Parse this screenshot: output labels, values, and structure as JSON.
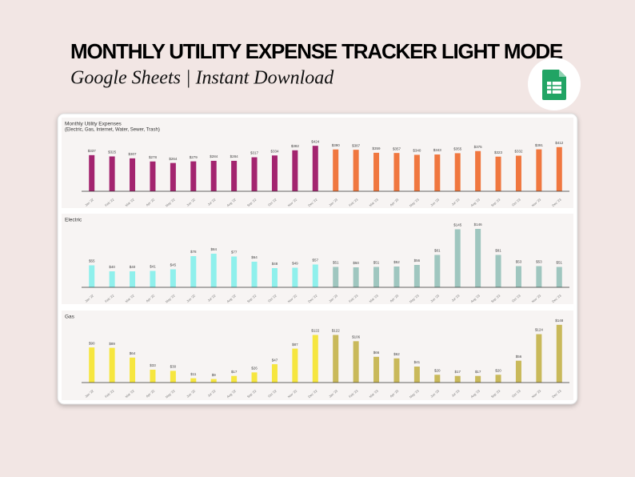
{
  "header": {
    "title": "MONTHLY UTILITY EXPENSE TRACKER LIGHT MODE",
    "subtitle": "Google Sheets | Instant Download"
  },
  "chart_data": [
    {
      "type": "bar",
      "title": "Monthly Utility Expenses",
      "subtitle": "(Electric, Gas, Internet, Water, Sewer, Trash)",
      "categories": [
        "Jan '22",
        "Feb '22",
        "Mar '22",
        "Apr '22",
        "May '22",
        "Jun '22",
        "Jul '22",
        "Aug '22",
        "Sep '22",
        "Oct '22",
        "Nov '22",
        "Dec '22",
        "Jan '23",
        "Feb '23",
        "Mar '23",
        "Apr '23",
        "May '23",
        "Jun '23",
        "Jul '23",
        "Aug '23",
        "Sep '23",
        "Oct '23",
        "Nov '23",
        "Dec '23"
      ],
      "values": [
        337,
        325,
        307,
        278,
        264,
        279,
        284,
        284,
        317,
        334,
        382,
        424,
        390,
        387,
        359,
        357,
        340,
        343,
        355,
        375,
        323,
        332,
        391,
        412
      ],
      "value_labels": [
        "$337",
        "$325",
        "$307",
        "$278",
        "$264",
        "$279",
        "$284",
        "$284",
        "$317",
        "$334",
        "$382",
        "$424",
        "$390",
        "$387",
        "$359",
        "$357",
        "$340",
        "$343",
        "$355",
        "$375",
        "$323",
        "$332",
        "$391",
        "$412"
      ],
      "bar_colors": [
        "#a3246f",
        "#a3246f",
        "#a3246f",
        "#a3246f",
        "#a3246f",
        "#a3246f",
        "#a3246f",
        "#a3246f",
        "#a3246f",
        "#a3246f",
        "#a3246f",
        "#a3246f",
        "#f0773f",
        "#f0773f",
        "#f0773f",
        "#f0773f",
        "#f0773f",
        "#f0773f",
        "#f0773f",
        "#f0773f",
        "#f0773f",
        "#f0773f",
        "#f0773f",
        "#f0773f"
      ],
      "ylim": [
        0,
        500
      ]
    },
    {
      "type": "bar",
      "title": "Electric",
      "categories": [
        "Jan '22",
        "Feb '22",
        "Mar '22",
        "Apr '22",
        "May '22",
        "Jun '22",
        "Jul '22",
        "Aug '22",
        "Sep '22",
        "Oct '22",
        "Nov '22",
        "Dec '22",
        "Jan '23",
        "Feb '23",
        "Mar '23",
        "Apr '23",
        "May '23",
        "Jun '23",
        "Jul '23",
        "Aug '23",
        "Sep '23",
        "Oct '23",
        "Nov '23",
        "Dec '23"
      ],
      "values": [
        55,
        40,
        40,
        41,
        45,
        78,
        84,
        77,
        64,
        48,
        49,
        57,
        51,
        50,
        51,
        52,
        56,
        81,
        145,
        146,
        81,
        53,
        53,
        51
      ],
      "value_labels": [
        "$55",
        "$40",
        "$40",
        "$41",
        "$45",
        "$78",
        "$84",
        "$77",
        "$64",
        "$48",
        "$49",
        "$57",
        "$51",
        "$50",
        "$51",
        "$52",
        "$56",
        "$81",
        "$145",
        "$146",
        "$81",
        "$53",
        "$53",
        "$51"
      ],
      "bar_colors": [
        "#8ff0ec",
        "#8ff0ec",
        "#8ff0ec",
        "#8ff0ec",
        "#8ff0ec",
        "#8ff0ec",
        "#8ff0ec",
        "#8ff0ec",
        "#8ff0ec",
        "#8ff0ec",
        "#8ff0ec",
        "#8ff0ec",
        "#9fc6bf",
        "#9fc6bf",
        "#9fc6bf",
        "#9fc6bf",
        "#9fc6bf",
        "#9fc6bf",
        "#9fc6bf",
        "#9fc6bf",
        "#9fc6bf",
        "#9fc6bf",
        "#9fc6bf",
        "#9fc6bf"
      ],
      "ylim": [
        0,
        160
      ]
    },
    {
      "type": "bar",
      "title": "Gas",
      "categories": [
        "Jan '22",
        "Feb '22",
        "Mar '22",
        "Apr '22",
        "May '22",
        "Jun '22",
        "Jul '22",
        "Aug '22",
        "Sep '22",
        "Oct '22",
        "Nov '22",
        "Dec '22",
        "Jan '23",
        "Feb '23",
        "Mar '23",
        "Apr '23",
        "May '23",
        "Jun '23",
        "Jul '23",
        "Aug '23",
        "Sep '23",
        "Oct '23",
        "Nov '23",
        "Dec '23"
      ],
      "values": [
        90,
        89,
        64,
        33,
        30,
        11,
        9,
        17,
        26,
        47,
        87,
        122,
        122,
        106,
        66,
        62,
        41,
        20,
        17,
        17,
        20,
        56,
        124,
        148
      ],
      "value_labels": [
        "$90",
        "$89",
        "$64",
        "$33",
        "$30",
        "$11",
        "$9",
        "$17",
        "$26",
        "$47",
        "$87",
        "$122",
        "$122",
        "$106",
        "$66",
        "$62",
        "$41",
        "$20",
        "$17",
        "$17",
        "$20",
        "$56",
        "$124",
        "$148"
      ],
      "bar_colors": [
        "#f6e63f",
        "#f6e63f",
        "#f6e63f",
        "#f6e63f",
        "#f6e63f",
        "#f6e63f",
        "#f6e63f",
        "#f6e63f",
        "#f6e63f",
        "#f6e63f",
        "#f6e63f",
        "#f6e63f",
        "#c9b95a",
        "#c9b95a",
        "#c9b95a",
        "#c9b95a",
        "#c9b95a",
        "#c9b95a",
        "#c9b95a",
        "#c9b95a",
        "#c9b95a",
        "#c9b95a",
        "#c9b95a",
        "#c9b95a"
      ],
      "ylim": [
        0,
        160
      ]
    }
  ]
}
